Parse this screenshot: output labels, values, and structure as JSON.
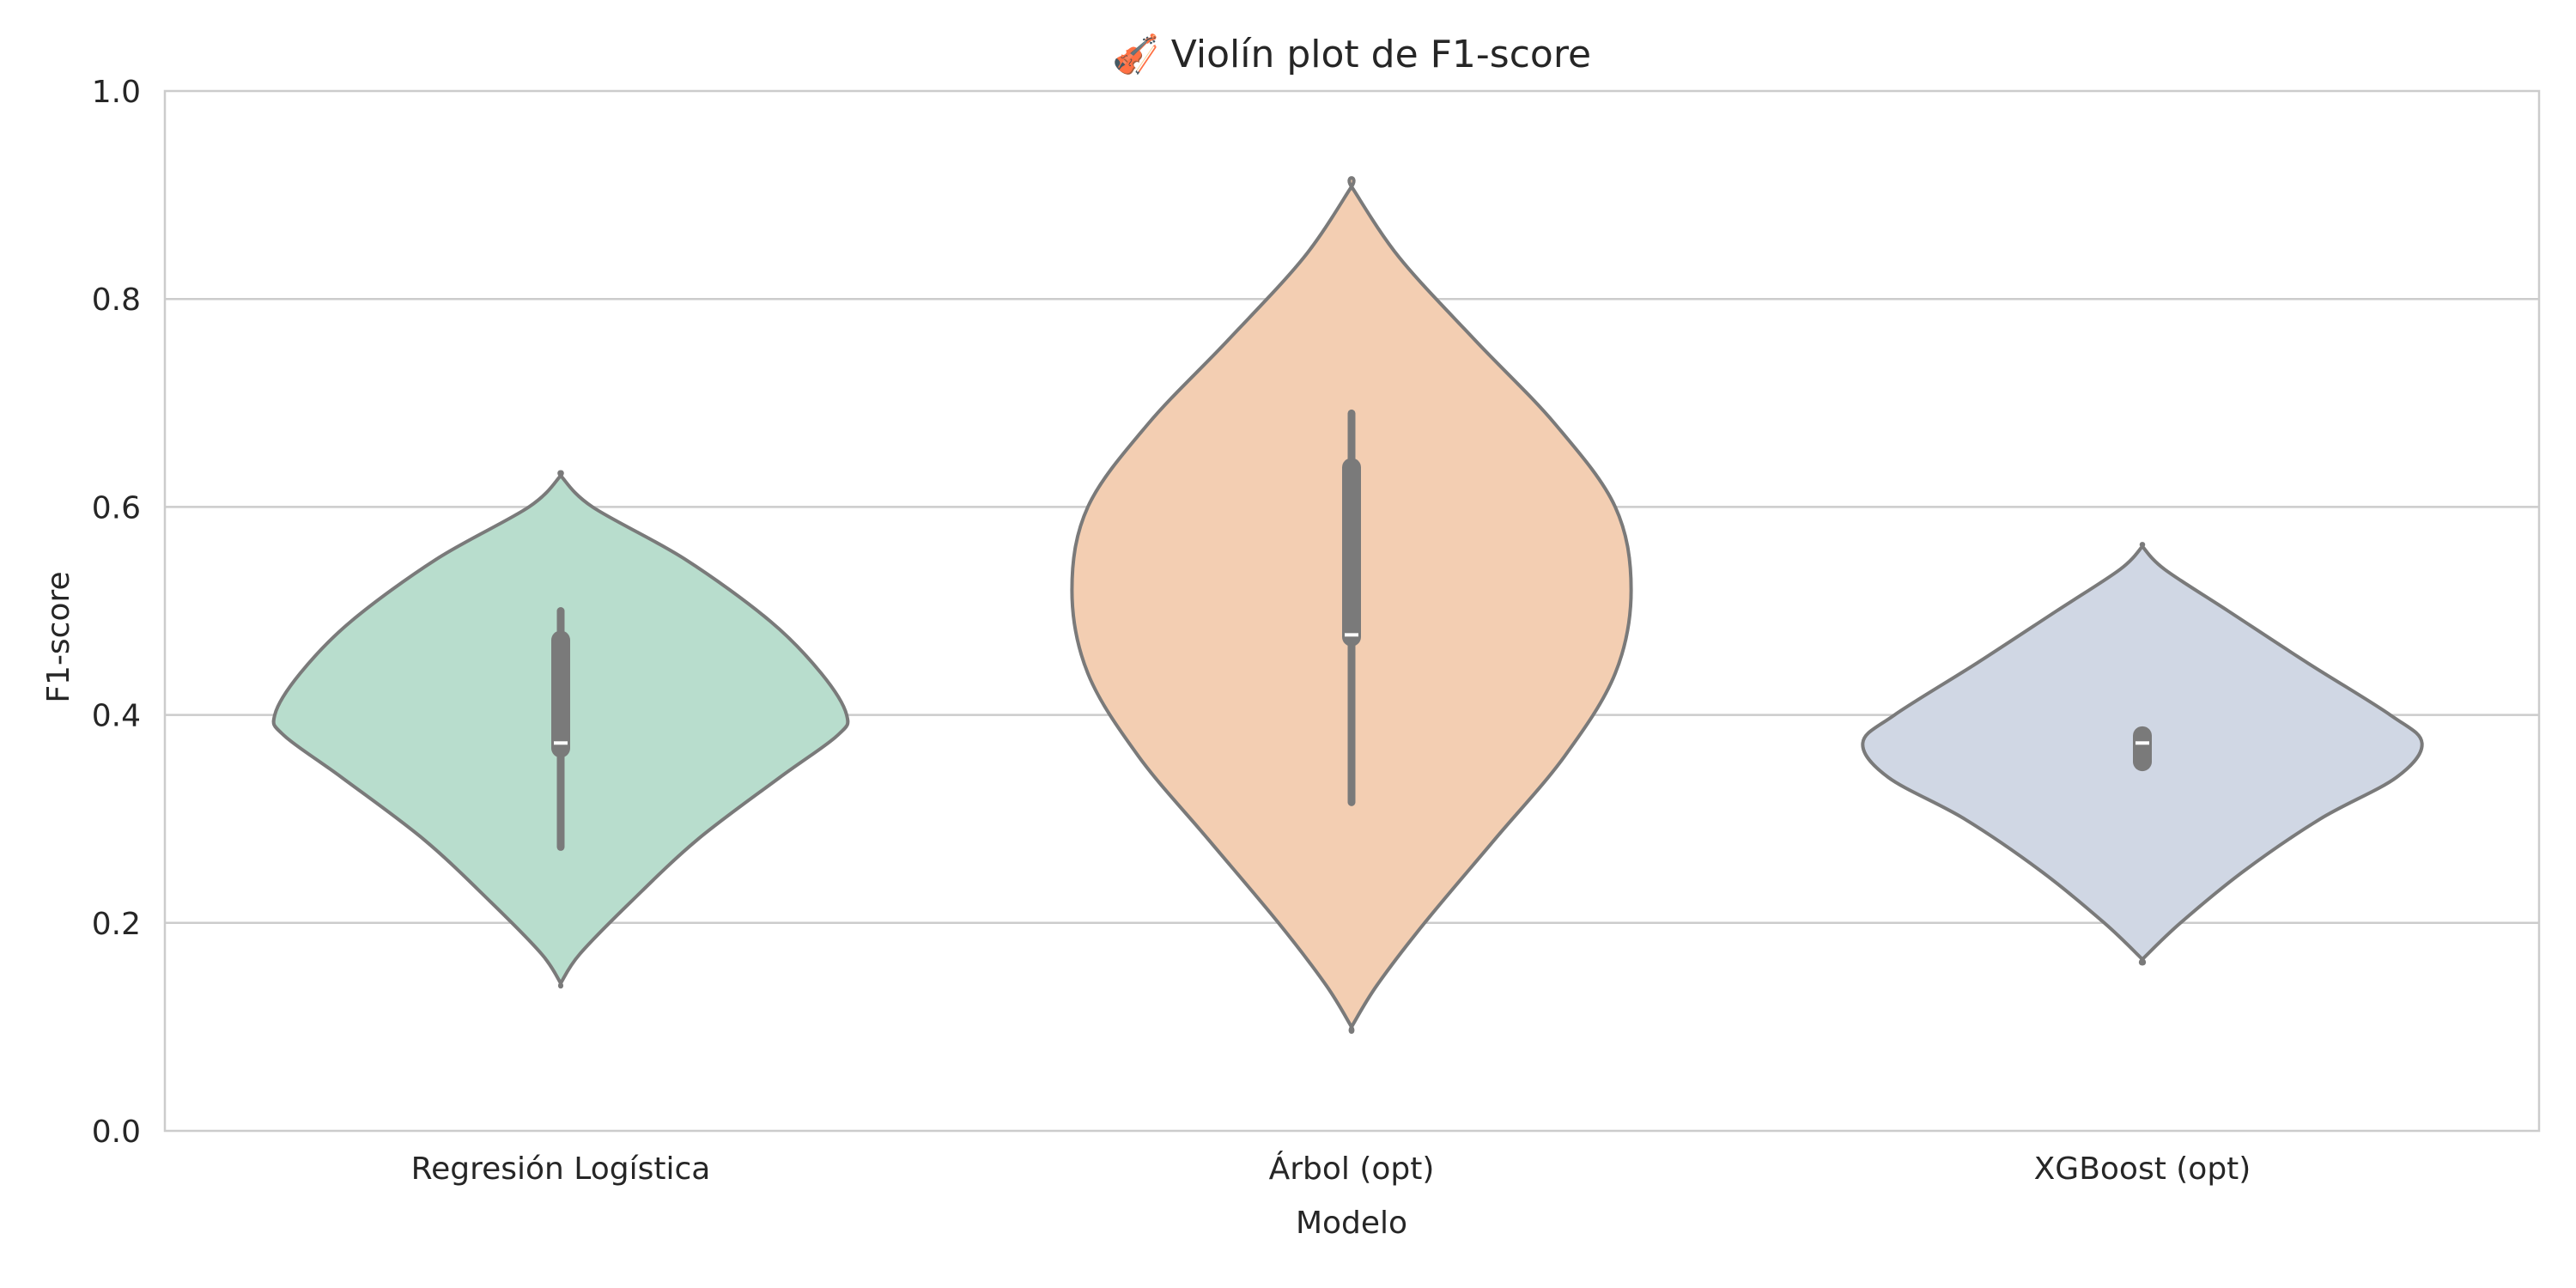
{
  "chart_data": {
    "type": "violin",
    "title": "🎻 Violín plot de F1-score",
    "xlabel": "Modelo",
    "ylabel": "F1-score",
    "ylim": [
      0.0,
      1.0
    ],
    "yticks": [
      "0.0",
      "0.2",
      "0.4",
      "0.6",
      "0.8",
      "1.0"
    ],
    "grid": "horizontal",
    "categories": [
      "Regresión Logística",
      "Árbol (opt)",
      "XGBoost (opt)"
    ],
    "series": [
      {
        "category": "Regresión Logística",
        "color": "#b8ddcd",
        "min": 0.142,
        "max": 0.63,
        "whisker_low": 0.273,
        "whisker_high": 0.5,
        "q1": 0.368,
        "q3": 0.472,
        "median": 0.373,
        "density": [
          [
            0.142,
            0.0
          ],
          [
            0.17,
            0.06
          ],
          [
            0.22,
            0.22
          ],
          [
            0.28,
            0.43
          ],
          [
            0.34,
            0.69
          ],
          [
            0.38,
            0.87
          ],
          [
            0.4,
            0.9
          ],
          [
            0.44,
            0.82
          ],
          [
            0.49,
            0.66
          ],
          [
            0.55,
            0.39
          ],
          [
            0.6,
            0.1
          ],
          [
            0.63,
            0.0
          ]
        ]
      },
      {
        "category": "Árbol (opt)",
        "color": "#f3ceb2",
        "min": 0.1,
        "max": 0.908,
        "whisker_low": 0.316,
        "whisker_high": 0.69,
        "q1": 0.475,
        "q3": 0.638,
        "median": 0.477,
        "density": [
          [
            0.1,
            0.0
          ],
          [
            0.14,
            0.08
          ],
          [
            0.2,
            0.23
          ],
          [
            0.28,
            0.45
          ],
          [
            0.36,
            0.67
          ],
          [
            0.44,
            0.83
          ],
          [
            0.52,
            0.88
          ],
          [
            0.6,
            0.83
          ],
          [
            0.68,
            0.64
          ],
          [
            0.76,
            0.39
          ],
          [
            0.84,
            0.15
          ],
          [
            0.908,
            0.0
          ]
        ]
      },
      {
        "category": "XGBoost (opt)",
        "color": "#d0d7e4",
        "min": 0.165,
        "max": 0.562,
        "whisker_low": 0.352,
        "whisker_high": 0.383,
        "q1": 0.355,
        "q3": 0.38,
        "median": 0.373,
        "density": [
          [
            0.165,
            0.0
          ],
          [
            0.2,
            0.12
          ],
          [
            0.25,
            0.32
          ],
          [
            0.3,
            0.56
          ],
          [
            0.34,
            0.8
          ],
          [
            0.373,
            0.88
          ],
          [
            0.4,
            0.78
          ],
          [
            0.45,
            0.52
          ],
          [
            0.5,
            0.27
          ],
          [
            0.54,
            0.07
          ],
          [
            0.562,
            0.0
          ]
        ]
      }
    ]
  }
}
